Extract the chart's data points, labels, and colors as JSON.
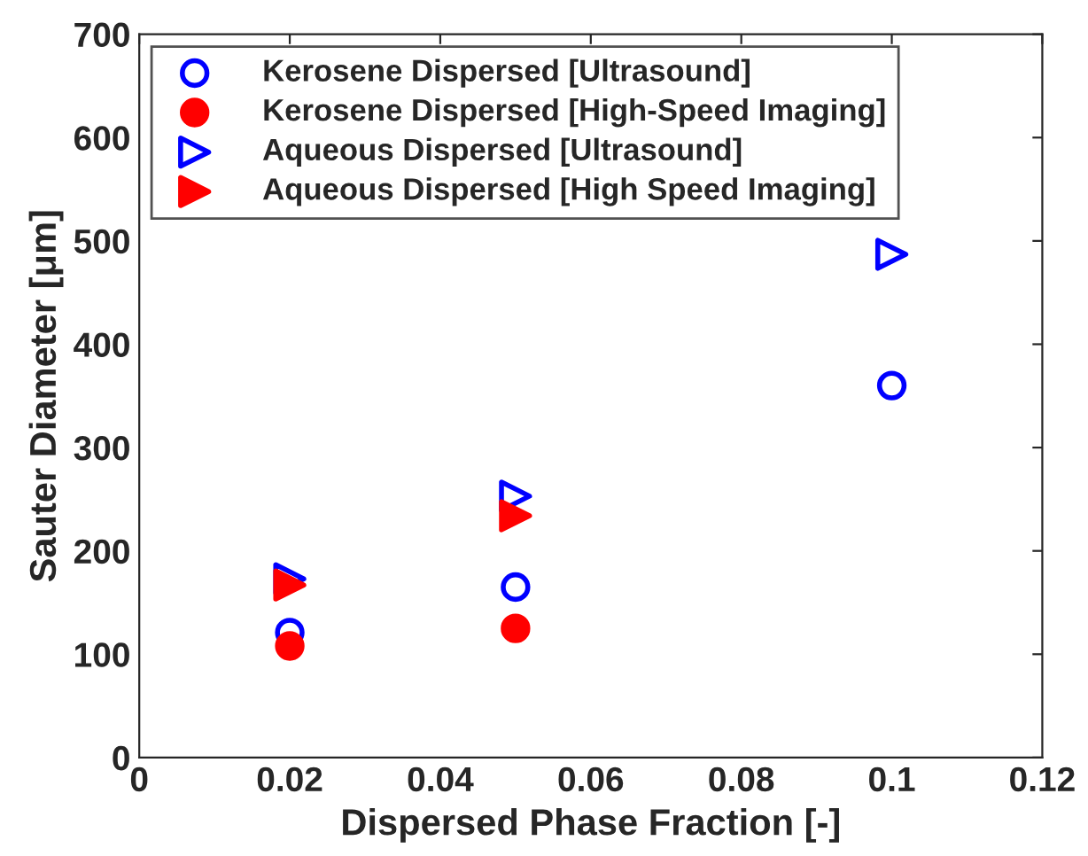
{
  "chart_data": {
    "type": "scatter",
    "xlabel": "Dispersed Phase Fraction [-]",
    "ylabel": "Sauter Diameter [μm]",
    "xlim": [
      0,
      0.12
    ],
    "xticks": [
      0,
      0.02,
      0.04,
      0.06,
      0.08,
      0.1,
      0.12
    ],
    "ylim": [
      0,
      700
    ],
    "yticks": [
      0,
      100,
      200,
      300,
      400,
      500,
      600,
      700
    ],
    "grid": false,
    "legend": "top left",
    "series": [
      {
        "name": "Kerosene Dispersed [Ultrasound]",
        "color": "#0000ff",
        "marker": "circle",
        "x": [
          0.02,
          0.05,
          0.1
        ],
        "values": [
          121,
          165,
          360
        ]
      },
      {
        "name": "Kerosene Dispersed [High-Speed Imaging]",
        "color": "#ff0000",
        "marker": "circle",
        "x": [
          0.02,
          0.05
        ],
        "values": [
          108,
          125
        ]
      },
      {
        "name": "Aqueous Dispersed [Ultrasound]",
        "color": "#0000ff",
        "marker": "triangle",
        "x": [
          0.02,
          0.05,
          0.1
        ],
        "values": [
          173,
          253,
          487
        ]
      },
      {
        "name": "Aqueous Dispersed [High Speed Imaging]",
        "color": "#ff0000",
        "marker": "triangle",
        "x": [
          0.02,
          0.05
        ],
        "values": [
          167,
          234
        ]
      }
    ]
  }
}
